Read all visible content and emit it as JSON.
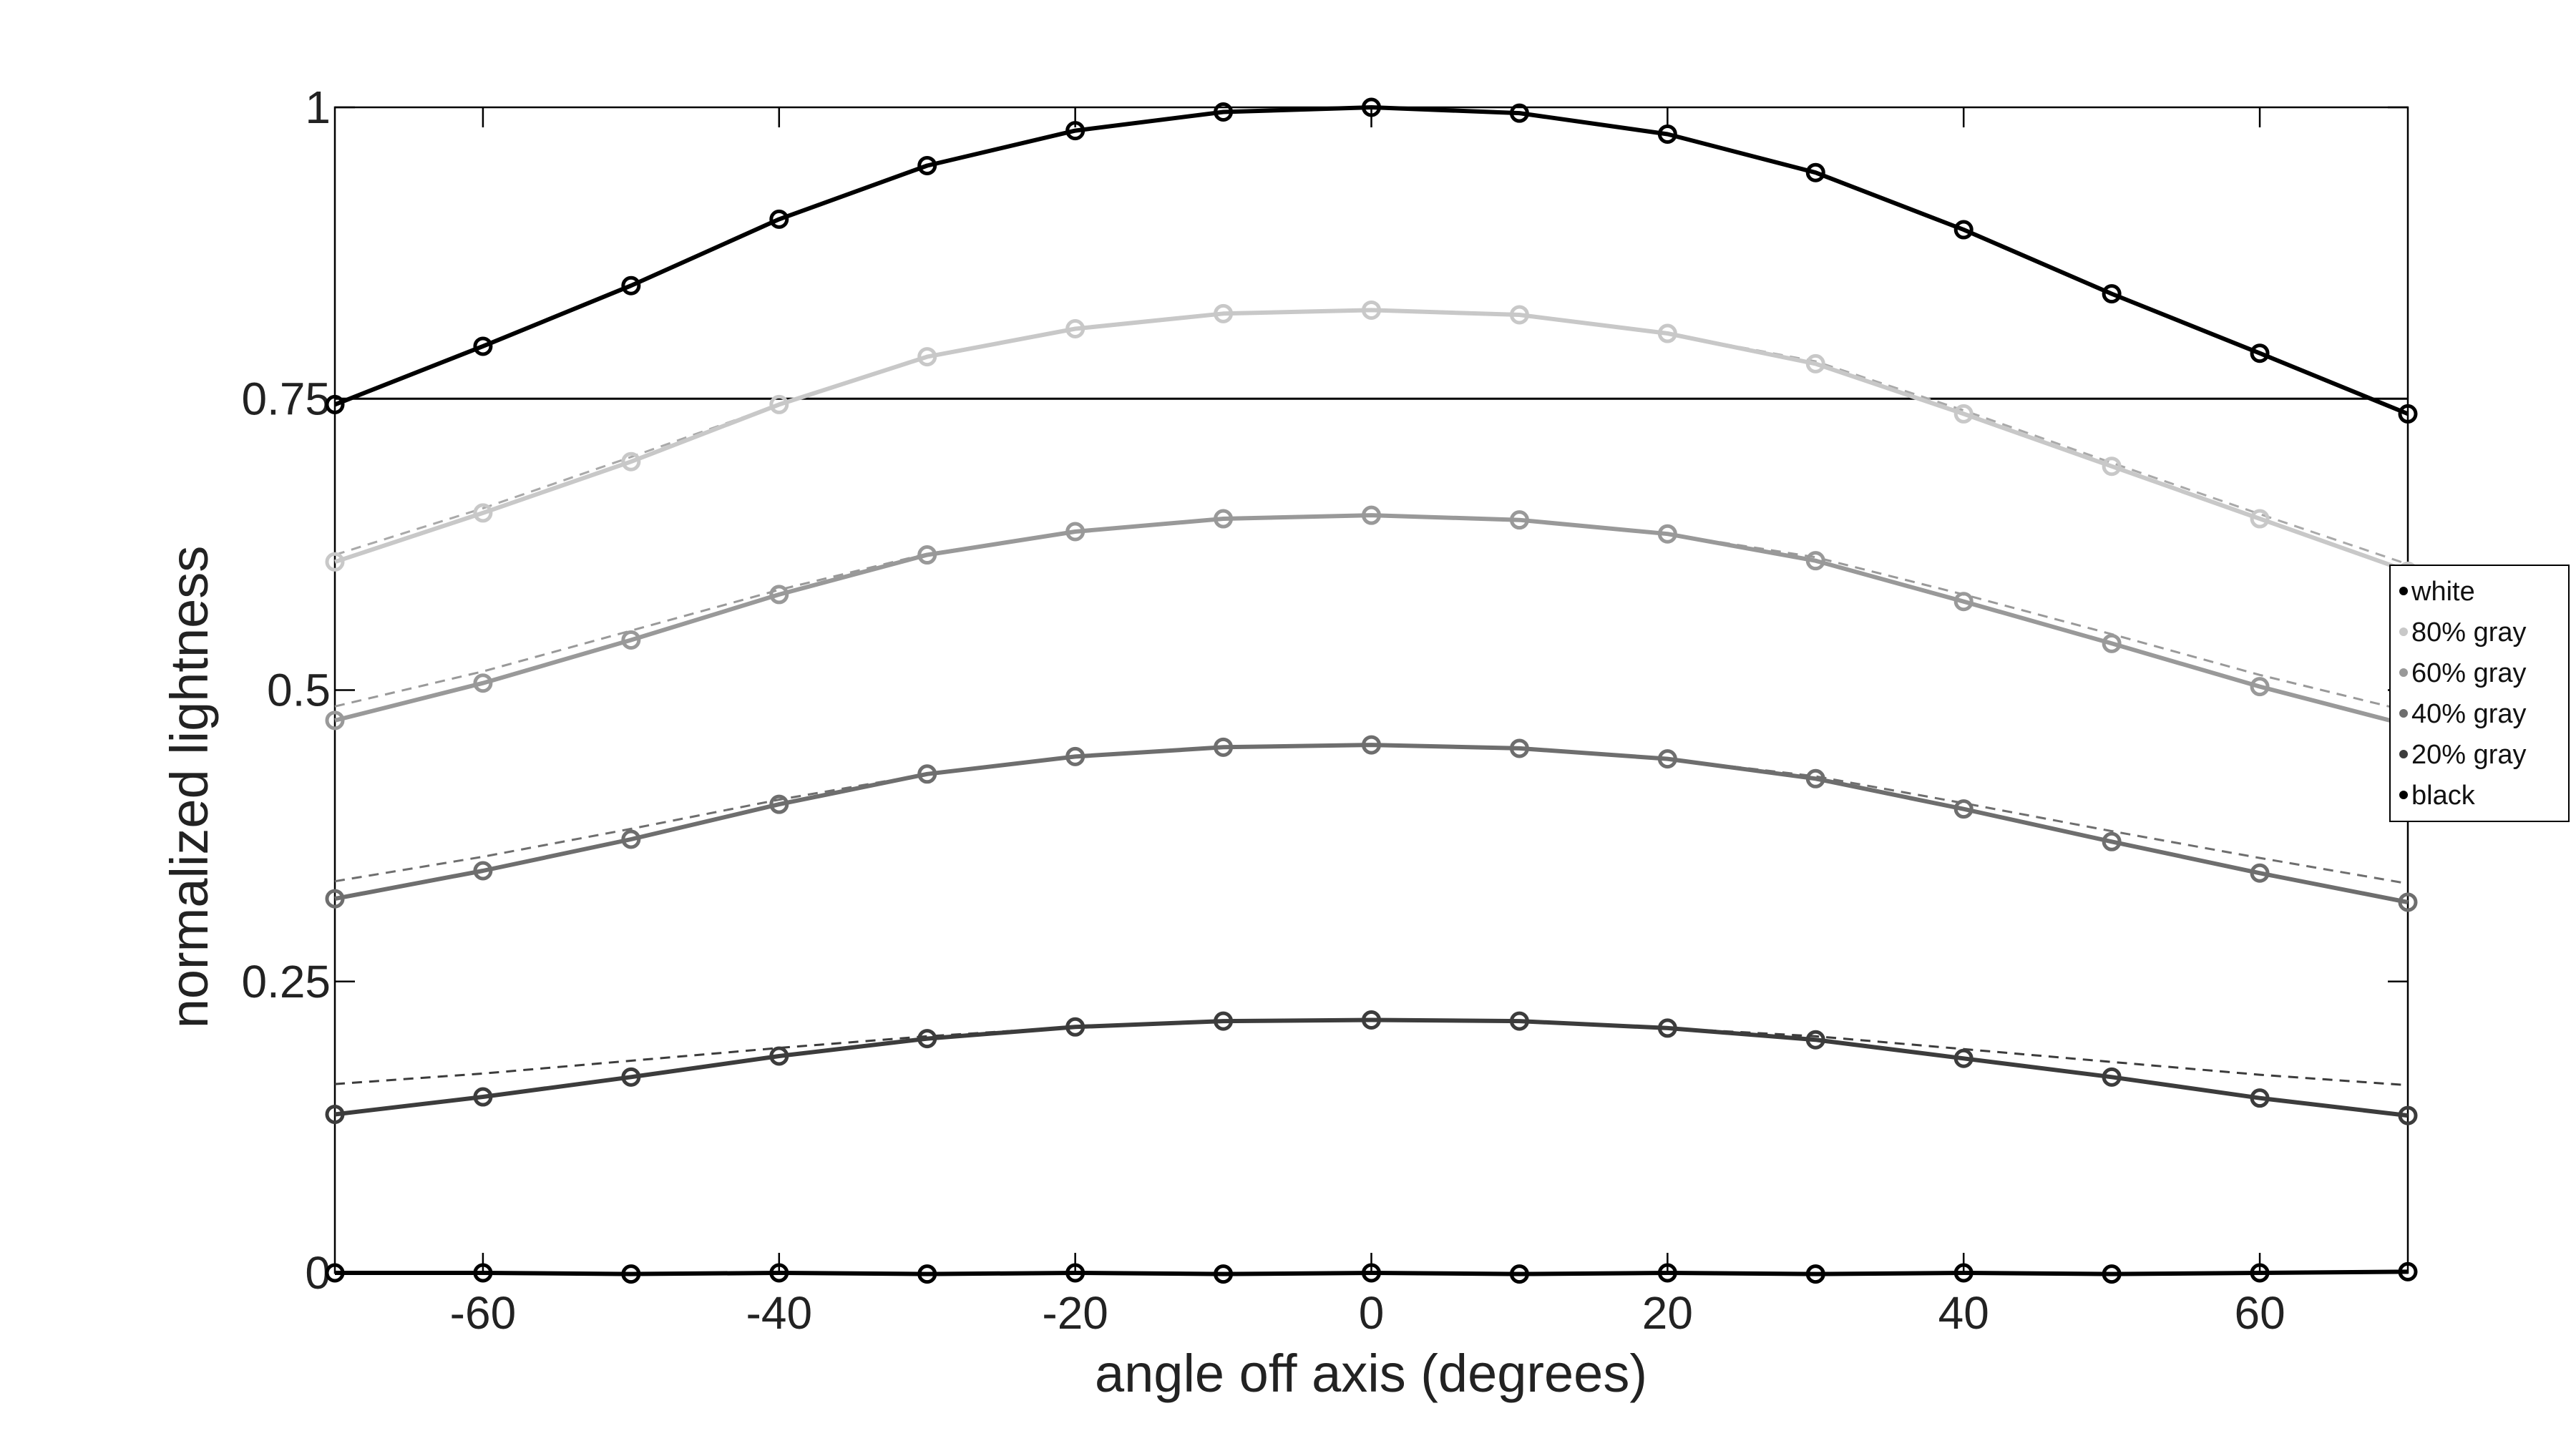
{
  "chart_data": {
    "type": "line",
    "xlabel": "angle off axis (degrees)",
    "ylabel": "normalized lightness",
    "xlim": [
      -70,
      70
    ],
    "ylim": [
      0,
      1
    ],
    "x_ticks": [
      -60,
      -40,
      -20,
      0,
      20,
      40,
      60
    ],
    "y_ticks": [
      0,
      0.25,
      0.5,
      0.75,
      1
    ],
    "y_tick_labels": [
      "0",
      "0.25",
      "0.5",
      "0.75",
      "1"
    ],
    "reference_line_y": 0.75,
    "legend_position": "right-middle",
    "x": [
      -70,
      -60,
      -50,
      -40,
      -30,
      -20,
      -10,
      0,
      10,
      20,
      30,
      40,
      50,
      60,
      70
    ],
    "series": [
      {
        "name": "white",
        "color": "#000000",
        "values": [
          0.745,
          0.795,
          0.847,
          0.904,
          0.95,
          0.98,
          0.996,
          1.0,
          0.995,
          0.977,
          0.944,
          0.895,
          0.84,
          0.789,
          0.737
        ],
        "fit": []
      },
      {
        "name": "80% gray",
        "color": "#c8c8c8",
        "values": [
          0.61,
          0.652,
          0.696,
          0.745,
          0.786,
          0.81,
          0.823,
          0.826,
          0.822,
          0.806,
          0.78,
          0.737,
          0.692,
          0.647,
          0.602
        ],
        "fit": [
          0.616,
          0.656,
          0.7,
          0.745,
          0.786,
          0.81,
          0.823,
          0.826,
          0.822,
          0.806,
          0.782,
          0.74,
          0.695,
          0.651,
          0.608
        ]
      },
      {
        "name": "60% gray",
        "color": "#999999",
        "values": [
          0.474,
          0.506,
          0.543,
          0.582,
          0.616,
          0.636,
          0.647,
          0.65,
          0.646,
          0.634,
          0.611,
          0.576,
          0.54,
          0.503,
          0.47
        ],
        "fit": [
          0.486,
          0.516,
          0.551,
          0.586,
          0.617,
          0.636,
          0.647,
          0.65,
          0.646,
          0.634,
          0.614,
          0.582,
          0.548,
          0.513,
          0.482
        ]
      },
      {
        "name": "40% gray",
        "color": "#6e6e6e",
        "values": [
          0.321,
          0.345,
          0.372,
          0.402,
          0.428,
          0.443,
          0.451,
          0.453,
          0.45,
          0.441,
          0.424,
          0.398,
          0.37,
          0.343,
          0.318
        ],
        "fit": [
          0.336,
          0.357,
          0.381,
          0.406,
          0.428,
          0.443,
          0.451,
          0.453,
          0.45,
          0.441,
          0.426,
          0.403,
          0.379,
          0.356,
          0.334
        ]
      },
      {
        "name": "20% gray",
        "color": "#3c3c3c",
        "values": [
          0.136,
          0.151,
          0.168,
          0.186,
          0.201,
          0.211,
          0.216,
          0.217,
          0.216,
          0.21,
          0.2,
          0.184,
          0.168,
          0.15,
          0.135
        ],
        "fit": [
          0.162,
          0.171,
          0.182,
          0.193,
          0.203,
          0.211,
          0.216,
          0.217,
          0.216,
          0.21,
          0.203,
          0.192,
          0.181,
          0.17,
          0.161
        ]
      },
      {
        "name": "black",
        "color": "#000000",
        "values": [
          0.0,
          0.0,
          -0.001,
          0.0,
          -0.001,
          0.0,
          -0.001,
          0.0,
          -0.001,
          0.0,
          -0.001,
          0.0,
          -0.001,
          0.0,
          0.001
        ],
        "fit": []
      }
    ]
  }
}
